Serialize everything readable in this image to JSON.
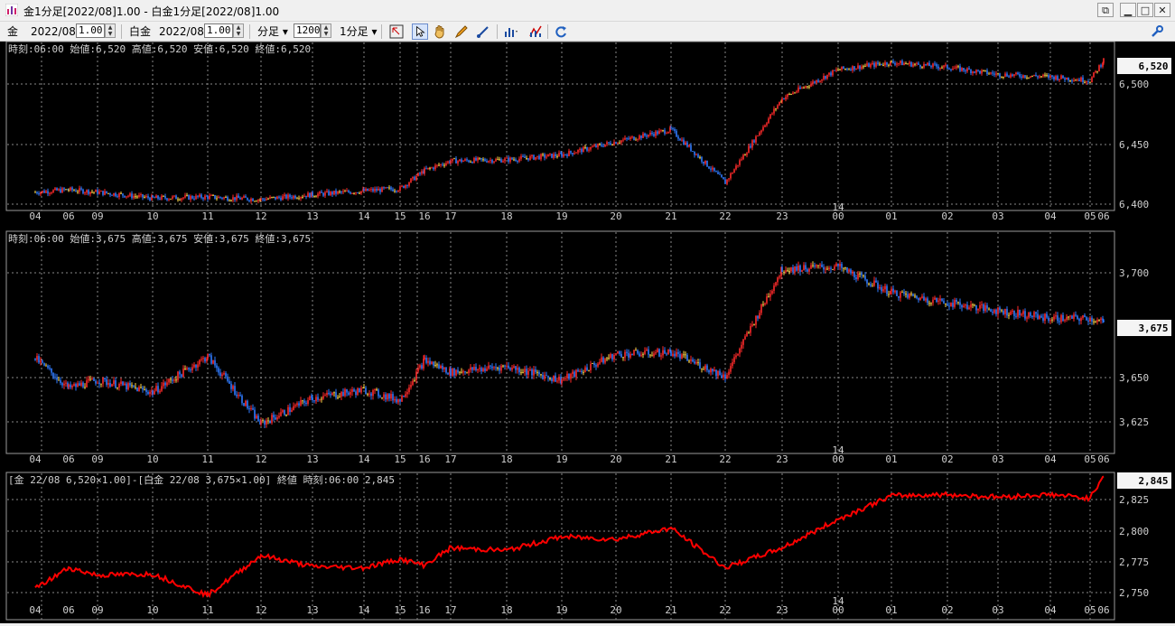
{
  "window": {
    "title": "金1分足[2022/08]1.00 - 白金1分足[2022/08]1.00",
    "buttons": [
      "restore-all",
      "minimize",
      "maximize",
      "close"
    ]
  },
  "toolbar": {
    "symbol1": "金",
    "month1": "2022/08",
    "ratio1": "1.00",
    "symbol2": "白金",
    "month2": "2022/08",
    "ratio2": "1.00",
    "period_type": "分足",
    "count": "1200",
    "interval": "1分足",
    "icons": [
      "cursor-icon",
      "pointer-icon",
      "hand-icon",
      "pen-icon",
      "line-draw-icon",
      "bar-chart-icon",
      "indicator-icon",
      "refresh-icon",
      "settings-icon"
    ]
  },
  "colors": {
    "up": "#ff2a2a",
    "down": "#2f7bff",
    "doji": "#ffd84a",
    "spread": "#ff0000",
    "grid": "#888888",
    "axis_text": "#d0d0d0"
  },
  "x_axis": {
    "labels": [
      "04",
      "06",
      "09",
      "10",
      "11",
      "12",
      "13",
      "14",
      "15",
      "16",
      "17",
      "18",
      "19",
      "20",
      "21",
      "22",
      "23",
      "00",
      "01",
      "02",
      "03",
      "04",
      "05",
      "06"
    ],
    "date_label": "14"
  },
  "panels": [
    {
      "name": "gold",
      "header": "時刻:06:00 始値:6,520 高値:6,520 安値:6,520 終値:6,520",
      "current": "6,520",
      "y_labels": [
        "6,500",
        "6,450",
        "6,400"
      ]
    },
    {
      "name": "platinum",
      "header": "時刻:06:00 始値:3,675 高値:3,675 安値:3,675 終値:3,675",
      "current": "3,675",
      "y_labels": [
        "3,700",
        "3,650",
        "3,625"
      ]
    },
    {
      "name": "spread",
      "header": "[金 22/08 6,520×1.00]-[白金 22/08 3,675×1.00] 終値 時刻:06:00 2,845",
      "current": "2,845",
      "y_labels": [
        "2,825",
        "2,800",
        "2,775",
        "2,750"
      ]
    }
  ],
  "chart_data": [
    {
      "type": "candlestick",
      "title": "金1分足",
      "ylim": [
        6395,
        6530
      ],
      "x": [
        "04",
        "06",
        "09",
        "10",
        "11",
        "12",
        "13",
        "14",
        "15",
        "16",
        "17",
        "18",
        "19",
        "20",
        "21",
        "22",
        "23",
        "00",
        "01",
        "02",
        "03",
        "04",
        "05",
        "06"
      ],
      "values": [
        6410,
        6412,
        6410,
        6405,
        6406,
        6404,
        6408,
        6411,
        6413,
        6428,
        6436,
        6437,
        6441,
        6452,
        6462,
        6418,
        6488,
        6512,
        6518,
        6514,
        6508,
        6506,
        6503,
        6520
      ]
    },
    {
      "type": "candlestick",
      "title": "白金1分足",
      "ylim": [
        3615,
        3718
      ],
      "x": [
        "04",
        "06",
        "09",
        "10",
        "11",
        "12",
        "13",
        "14",
        "15",
        "16",
        "17",
        "18",
        "19",
        "20",
        "21",
        "22",
        "23",
        "00",
        "01",
        "02",
        "03",
        "04",
        "05",
        "06"
      ],
      "values": [
        3657,
        3642,
        3646,
        3640,
        3658,
        3624,
        3637,
        3641,
        3636,
        3656,
        3650,
        3653,
        3646,
        3659,
        3660,
        3648,
        3702,
        3703,
        3690,
        3685,
        3681,
        3677,
        3677,
        3675
      ]
    },
    {
      "type": "line",
      "title": "[金 22/08 6,520×1.00]-[白金 22/08 3,675×1.00]",
      "ylim": [
        2743,
        2850
      ],
      "x": [
        "04",
        "06",
        "09",
        "10",
        "11",
        "12",
        "13",
        "14",
        "15",
        "16",
        "17",
        "18",
        "19",
        "20",
        "21",
        "22",
        "23",
        "00",
        "01",
        "02",
        "03",
        "04",
        "05",
        "06"
      ],
      "values": [
        2753,
        2770,
        2764,
        2765,
        2748,
        2780,
        2771,
        2770,
        2777,
        2772,
        2786,
        2784,
        2795,
        2793,
        2802,
        2770,
        2786,
        2809,
        2828,
        2829,
        2827,
        2829,
        2826,
        2845
      ]
    }
  ]
}
